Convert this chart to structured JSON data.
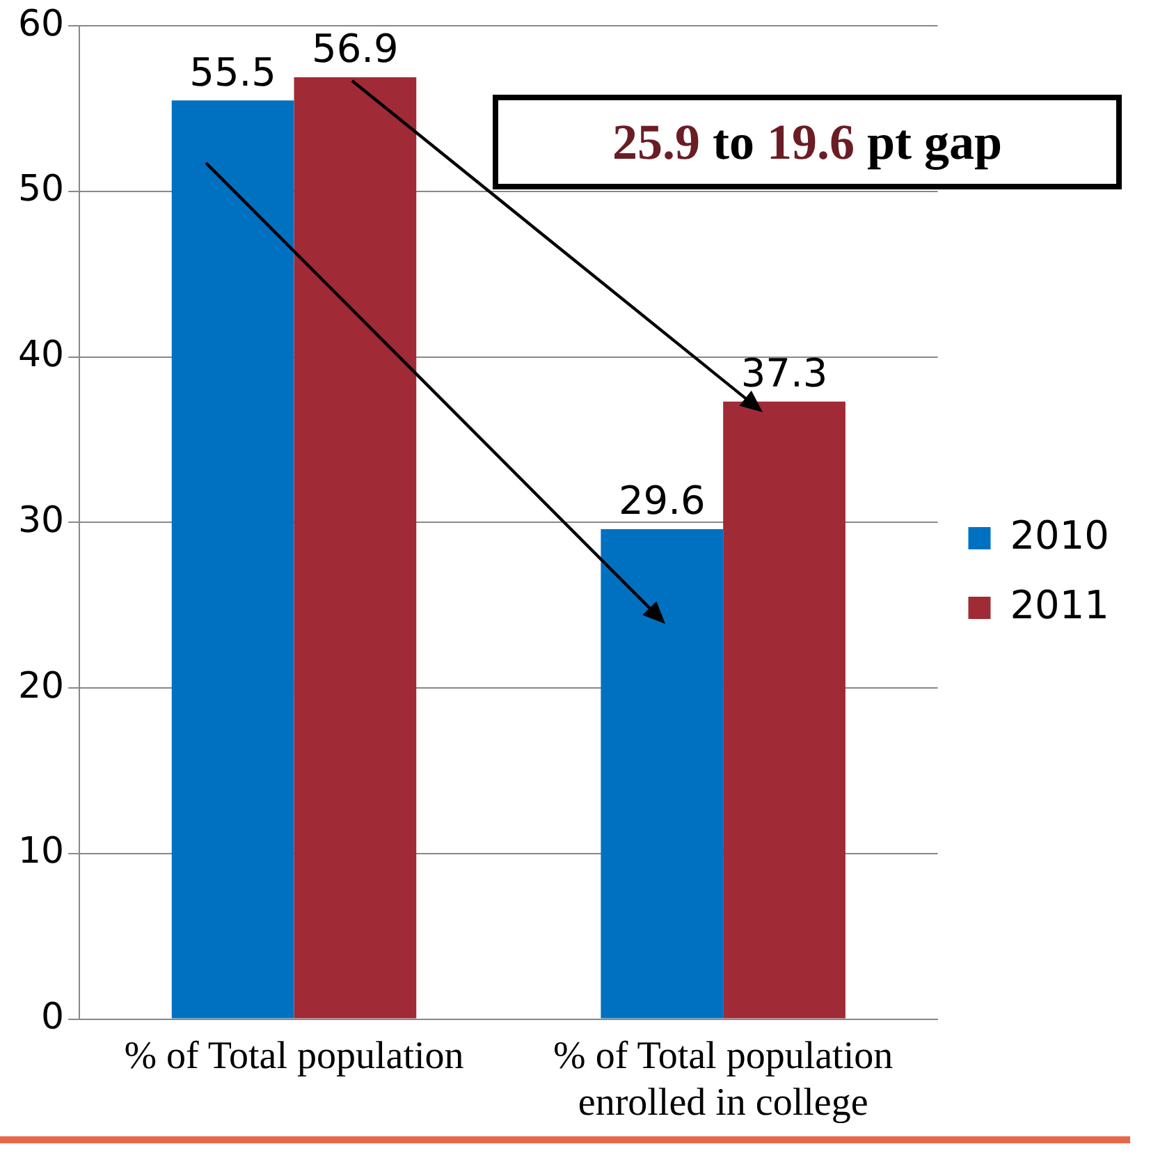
{
  "chart_data": {
    "type": "bar",
    "categories": [
      "% of Total population",
      "% of Total population enrolled in college"
    ],
    "series": [
      {
        "name": "2010",
        "color": "#0070c0",
        "values": [
          55.5,
          29.6
        ]
      },
      {
        "name": "2011",
        "color": "#a02b37",
        "values": [
          56.9,
          37.3
        ]
      }
    ],
    "ylim": [
      0,
      60
    ],
    "yticks": [
      0,
      10,
      20,
      30,
      40,
      50,
      60
    ],
    "grid": "y",
    "legend": "right",
    "data_labels": true,
    "annotations": [
      "25.9 to 19.6 pt gap"
    ]
  }
}
